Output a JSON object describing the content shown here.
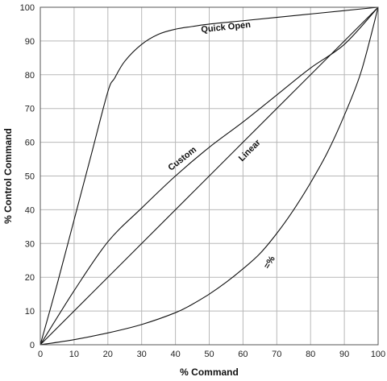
{
  "chart_data": {
    "type": "line",
    "title": "",
    "xlabel": "% Command",
    "ylabel": "% Control Command",
    "xlim": [
      0,
      100
    ],
    "ylim": [
      0,
      100
    ],
    "x_ticks": [
      0,
      10,
      20,
      30,
      40,
      50,
      60,
      70,
      80,
      90,
      100
    ],
    "y_ticks": [
      0,
      10,
      20,
      30,
      40,
      50,
      60,
      70,
      80,
      90,
      100
    ],
    "grid": true,
    "legend": "none",
    "series": [
      {
        "name": "Quick Open",
        "points": [
          [
            0,
            0
          ],
          [
            5,
            18
          ],
          [
            10,
            37
          ],
          [
            15,
            56
          ],
          [
            20,
            75
          ],
          [
            22,
            79
          ],
          [
            25,
            84
          ],
          [
            30,
            89
          ],
          [
            35,
            92
          ],
          [
            40,
            93.5
          ],
          [
            45,
            94.3
          ],
          [
            50,
            95
          ],
          [
            60,
            96
          ],
          [
            70,
            97
          ],
          [
            80,
            98
          ],
          [
            90,
            99
          ],
          [
            100,
            100
          ]
        ]
      },
      {
        "name": "Custom",
        "points": [
          [
            0,
            0
          ],
          [
            10,
            16
          ],
          [
            20,
            30.5
          ],
          [
            30,
            40.5
          ],
          [
            40,
            50
          ],
          [
            50,
            58.5
          ],
          [
            60,
            66
          ],
          [
            70,
            74
          ],
          [
            80,
            82
          ],
          [
            90,
            89
          ],
          [
            100,
            100
          ]
        ]
      },
      {
        "name": "Linear",
        "points": [
          [
            0,
            0
          ],
          [
            100,
            100
          ]
        ]
      },
      {
        "name": "=%",
        "points": [
          [
            0,
            0
          ],
          [
            10,
            1.5
          ],
          [
            20,
            3.5
          ],
          [
            30,
            6
          ],
          [
            40,
            9.5
          ],
          [
            45,
            12
          ],
          [
            50,
            15
          ],
          [
            55,
            18.5
          ],
          [
            60,
            22.5
          ],
          [
            65,
            27
          ],
          [
            70,
            33
          ],
          [
            75,
            40
          ],
          [
            80,
            48
          ],
          [
            85,
            57
          ],
          [
            90,
            68
          ],
          [
            95,
            81
          ],
          [
            100,
            100
          ]
        ]
      }
    ],
    "labels": {
      "quick_open": "Quick Open",
      "custom": "Custom",
      "linear": "Linear",
      "equal_percent": "=%"
    }
  }
}
